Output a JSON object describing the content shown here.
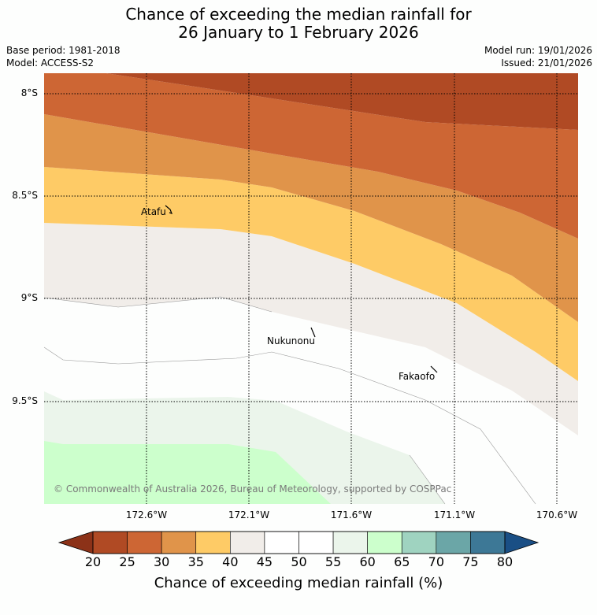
{
  "title_line1": "Chance of exceeding the median rainfall for",
  "title_line2": "26 January to 1 February 2026",
  "base_period": "Base period: 1981-2018",
  "model": "Model: ACCESS-S2",
  "model_run": "Model run: 19/01/2026",
  "issued": "Issued: 21/01/2026",
  "lat_labels": [
    "8°S",
    "8.5°S",
    "9°S",
    "9.5°S"
  ],
  "lon_labels": [
    "172.6°W",
    "172.1°W",
    "171.6°W",
    "171.1°W",
    "170.6°W"
  ],
  "places": [
    "Atafu",
    "Nukunonu",
    "Fakaofo"
  ],
  "copyright": "© Commonwealth of Australia 2026, Bureau of Meteorology, supported by COSPPac",
  "colorbar": {
    "ticks": [
      "20",
      "25",
      "30",
      "35",
      "40",
      "45",
      "50",
      "55",
      "60",
      "65",
      "70",
      "75",
      "80"
    ],
    "colors": [
      "#b04a24",
      "#cd6634",
      "#e0944a",
      "#fecb66",
      "#f1ede9",
      "#ffffff",
      "#ffffff",
      "#ebf5eb",
      "#ccffcc",
      "#9fd3c0",
      "#6ba6a7",
      "#3d7896"
    ],
    "under_color": "#8c3218",
    "over_color": "#1a4f85",
    "label": "Chance of exceeding median rainfall (%)"
  }
}
